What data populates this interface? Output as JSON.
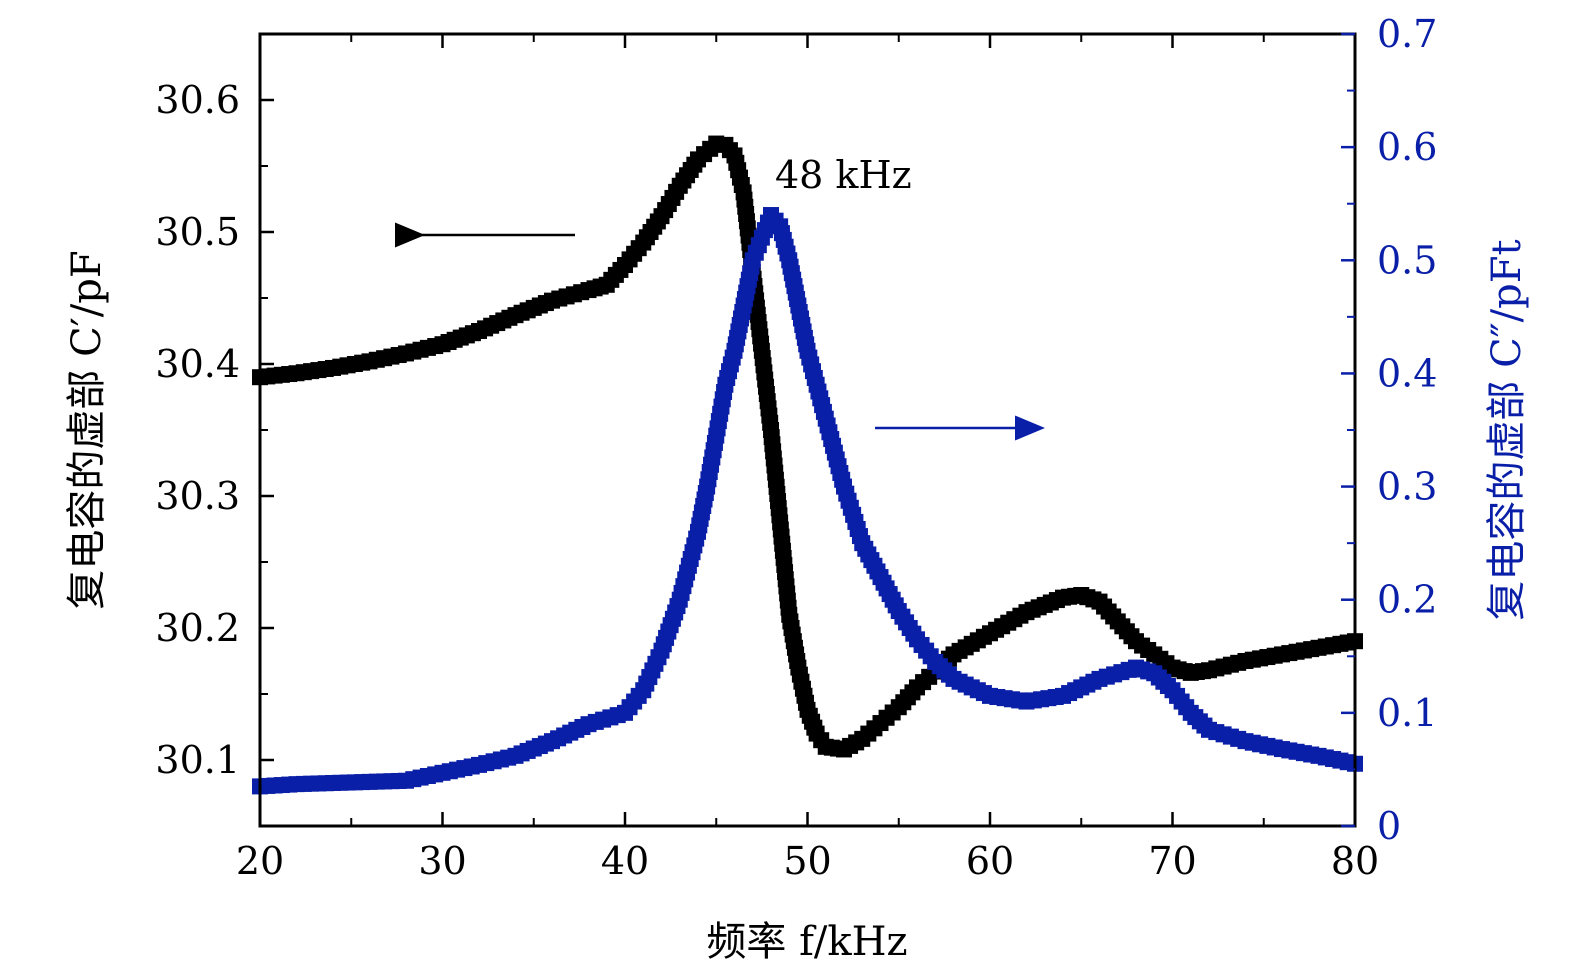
{
  "chart_data": {
    "type": "scatter",
    "xlabel": "频率 f/kHz",
    "ylabel_left": "复电容的虚部 C′/pF",
    "ylabel_right": "复电容的虚部 C″/pFt",
    "annotation": "48 kHz",
    "xlim": [
      20,
      80
    ],
    "ylim_left": [
      30.05,
      30.65
    ],
    "ylim_right": [
      0,
      0.7
    ],
    "x_ticks": [
      "20",
      "30",
      "40",
      "50",
      "60",
      "70",
      "80"
    ],
    "y_left_ticks": [
      "30.1",
      "30.2",
      "30.3",
      "30.4",
      "30.5",
      "30.6"
    ],
    "y_right_ticks": [
      "0",
      "0.1",
      "0.2",
      "0.3",
      "0.4",
      "0.5",
      "0.6",
      "0.7"
    ],
    "grid": false,
    "series": [
      {
        "axis": "left",
        "color": "#000000",
        "marker": "square",
        "points": [
          [
            20,
            30.39
          ],
          [
            22,
            30.393
          ],
          [
            24,
            30.397
          ],
          [
            26,
            30.402
          ],
          [
            28,
            30.408
          ],
          [
            30,
            30.415
          ],
          [
            32,
            30.425
          ],
          [
            34,
            30.437
          ],
          [
            36,
            30.448
          ],
          [
            38,
            30.456
          ],
          [
            39,
            30.46
          ],
          [
            40,
            30.475
          ],
          [
            41,
            30.492
          ],
          [
            42,
            30.512
          ],
          [
            43,
            30.535
          ],
          [
            44,
            30.555
          ],
          [
            45,
            30.567
          ],
          [
            45.5,
            30.566
          ],
          [
            46,
            30.558
          ],
          [
            46.5,
            30.53
          ],
          [
            47,
            30.47
          ],
          [
            47.5,
            30.41
          ],
          [
            48,
            30.35
          ],
          [
            48.5,
            30.28
          ],
          [
            49,
            30.21
          ],
          [
            49.5,
            30.17
          ],
          [
            50,
            30.138
          ],
          [
            50.5,
            30.12
          ],
          [
            51,
            30.11
          ],
          [
            52,
            30.108
          ],
          [
            53,
            30.116
          ],
          [
            54,
            30.128
          ],
          [
            55,
            30.14
          ],
          [
            56,
            30.155
          ],
          [
            57,
            30.167
          ],
          [
            58,
            30.18
          ],
          [
            60,
            30.196
          ],
          [
            62,
            30.212
          ],
          [
            64,
            30.223
          ],
          [
            65,
            30.225
          ],
          [
            66,
            30.22
          ],
          [
            67,
            30.205
          ],
          [
            68,
            30.19
          ],
          [
            69,
            30.18
          ],
          [
            70,
            30.17
          ],
          [
            71,
            30.166
          ],
          [
            72,
            30.168
          ],
          [
            74,
            30.175
          ],
          [
            76,
            30.18
          ],
          [
            78,
            30.185
          ],
          [
            80,
            30.19
          ]
        ]
      },
      {
        "axis": "right",
        "color": "#0a1fa8",
        "marker": "square",
        "points": [
          [
            20,
            0.035
          ],
          [
            22,
            0.037
          ],
          [
            24,
            0.038
          ],
          [
            26,
            0.039
          ],
          [
            28,
            0.04
          ],
          [
            30,
            0.047
          ],
          [
            32,
            0.054
          ],
          [
            34,
            0.062
          ],
          [
            36,
            0.075
          ],
          [
            38,
            0.09
          ],
          [
            40,
            0.1
          ],
          [
            41,
            0.12
          ],
          [
            42,
            0.155
          ],
          [
            43,
            0.2
          ],
          [
            43.5,
            0.23
          ],
          [
            44,
            0.26
          ],
          [
            44.5,
            0.3
          ],
          [
            45,
            0.345
          ],
          [
            45.5,
            0.39
          ],
          [
            46,
            0.42
          ],
          [
            46.5,
            0.46
          ],
          [
            47,
            0.5
          ],
          [
            47.5,
            0.52
          ],
          [
            48,
            0.54
          ],
          [
            48.5,
            0.53
          ],
          [
            49,
            0.5
          ],
          [
            49.5,
            0.46
          ],
          [
            50,
            0.42
          ],
          [
            50.5,
            0.39
          ],
          [
            51,
            0.36
          ],
          [
            51.5,
            0.33
          ],
          [
            52,
            0.3
          ],
          [
            52.5,
            0.275
          ],
          [
            53,
            0.25
          ],
          [
            54,
            0.22
          ],
          [
            55,
            0.19
          ],
          [
            56,
            0.165
          ],
          [
            57,
            0.145
          ],
          [
            58,
            0.13
          ],
          [
            60,
            0.115
          ],
          [
            62,
            0.11
          ],
          [
            64,
            0.115
          ],
          [
            66,
            0.13
          ],
          [
            68,
            0.14
          ],
          [
            69,
            0.135
          ],
          [
            70,
            0.12
          ],
          [
            71,
            0.1
          ],
          [
            72,
            0.085
          ],
          [
            74,
            0.075
          ],
          [
            76,
            0.068
          ],
          [
            78,
            0.062
          ],
          [
            80,
            0.055
          ]
        ]
      }
    ]
  }
}
